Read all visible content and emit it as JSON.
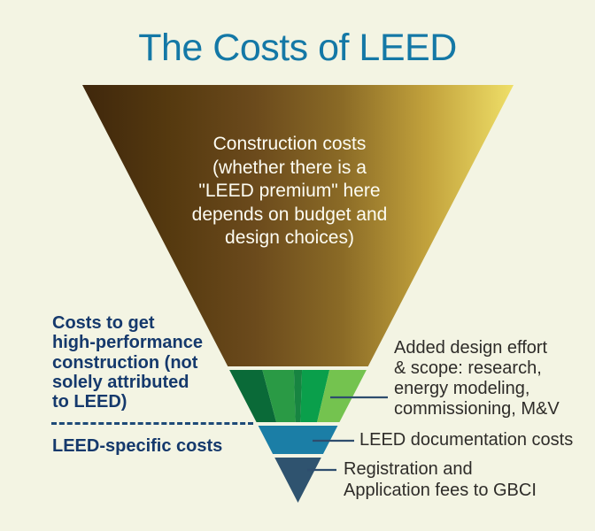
{
  "title": "The Costs of LEED",
  "colors": {
    "background": "#f3f4e3",
    "title": "#1478a6",
    "leader_line": "#2e4d6e",
    "left_label_text": "#15396c",
    "right_label_text": "#2e2c29",
    "funnel_text": "#fdfcf2",
    "dashed_divider": "#1e4a78"
  },
  "funnel": {
    "construction": {
      "label": "Construction costs\n(whether there is a\n\"LEED premium\" here\ndepends on budget and\ndesign choices)",
      "gradient": [
        "#3f270c",
        "#55390f",
        "#6b4a1c",
        "#8a6a26",
        "#c2a23c",
        "#efdf68"
      ]
    },
    "added_design": {
      "callout": "Added design effort\n& scope: research,\nenergy modeling,\ncommissioning, M&V",
      "stripes": [
        "#0a6a38",
        "#2a9a45",
        "#178441",
        "#0a9f4b",
        "#74c34f"
      ]
    },
    "documentation": {
      "callout": "LEED documentation costs",
      "color": "#1b7ea6"
    },
    "registration": {
      "callout": "Registration and\nApplication fees to GBCI",
      "color": "#2f536f"
    }
  },
  "left_annotations": {
    "high_performance": "Costs to get\nhigh-performance\nconstruction (not\nsolely attributed\nto LEED)",
    "leed_specific": "LEED-specific costs"
  }
}
